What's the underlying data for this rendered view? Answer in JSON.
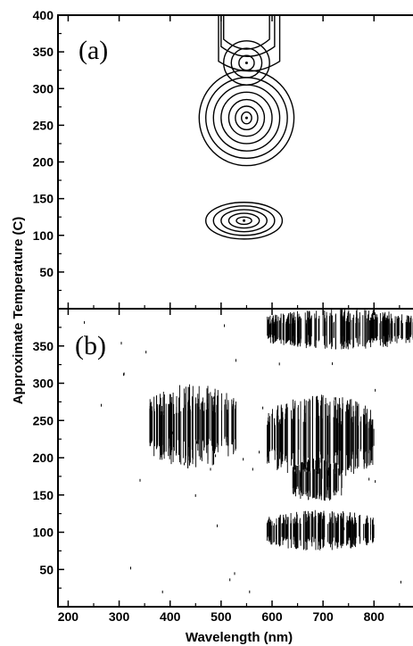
{
  "chart_data": [
    {
      "type": "contour",
      "panel_label": "(a)",
      "xlabel": "Wavelength (nm)",
      "ylabel": "Approximate Temperature (C)",
      "xlim": [
        180,
        880
      ],
      "ylim": [
        0,
        400
      ],
      "x_ticks": [
        "200",
        "300",
        "400",
        "500",
        "600",
        "700",
        "800"
      ],
      "y_ticks": [
        "50",
        "100",
        "150",
        "200",
        "250",
        "300",
        "350",
        "400"
      ],
      "grid": false,
      "peaks": [
        {
          "x": 550,
          "y": 335,
          "rx": [
            15,
            30,
            45
          ],
          "ry": [
            10,
            20,
            30
          ]
        },
        {
          "x": 550,
          "y": 260,
          "rx": [
            10,
            22,
            35,
            50,
            65,
            80,
            93
          ],
          "ry": [
            8,
            16,
            25,
            35,
            45,
            55,
            65
          ]
        },
        {
          "x": 545,
          "y": 120,
          "rx": [
            15,
            30,
            45,
            60,
            75
          ],
          "ry": [
            5,
            10,
            15,
            20,
            25
          ]
        }
      ],
      "ridges": [
        {
          "x_left": 505,
          "x_right": 595,
          "y_top": 400,
          "y_bottom": 355
        },
        {
          "x_left": 500,
          "x_right": 605,
          "y_top": 400,
          "y_bottom": 345
        },
        {
          "x_left": 495,
          "x_right": 615,
          "y_top": 400,
          "y_bottom": 325
        }
      ]
    },
    {
      "type": "heatmap",
      "panel_label": "(b)",
      "xlabel": "Wavelength (nm)",
      "ylabel": "Approximate Temperature (C)",
      "xlim": [
        180,
        880
      ],
      "ylim": [
        0,
        400
      ],
      "x_ticks": [
        "200",
        "300",
        "400",
        "500",
        "600",
        "700",
        "800"
      ],
      "y_ticks": [
        "50",
        "100",
        "150",
        "200",
        "250",
        "300",
        "350"
      ],
      "grid": false,
      "regions": [
        {
          "x": [
            360,
            530
          ],
          "y": [
            185,
            300
          ]
        },
        {
          "x": [
            590,
            800
          ],
          "y": [
            170,
            285
          ]
        },
        {
          "x": [
            590,
            800
          ],
          "y": [
            75,
            130
          ]
        },
        {
          "x": [
            590,
            880
          ],
          "y": [
            345,
            400
          ]
        },
        {
          "x": [
            640,
            740
          ],
          "y": [
            140,
            200
          ]
        }
      ]
    }
  ]
}
